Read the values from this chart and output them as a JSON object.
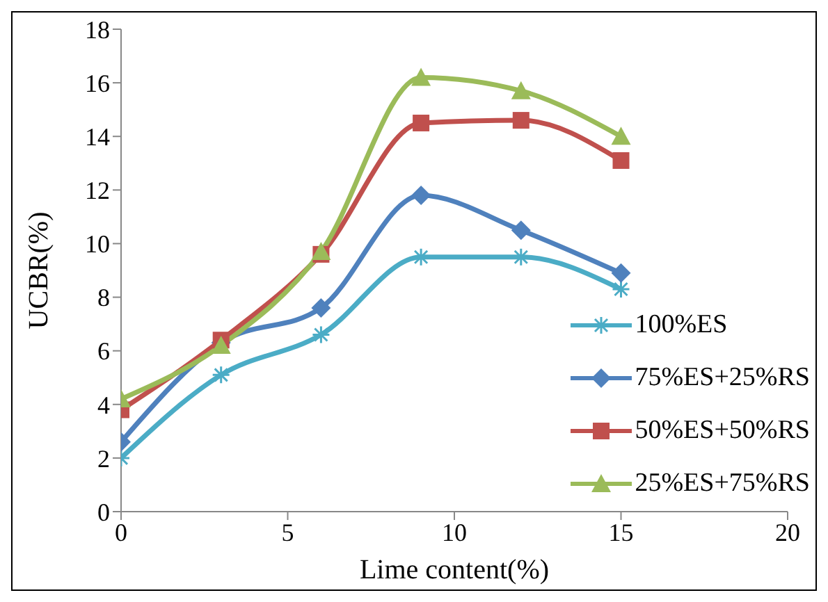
{
  "chart_data": {
    "type": "line",
    "xlabel": "Lime content(%)",
    "ylabel": "UCBR(%)",
    "x": [
      0,
      3,
      6,
      9,
      12,
      15
    ],
    "xlim": [
      0,
      20
    ],
    "xticks": [
      0,
      5,
      10,
      15,
      20
    ],
    "ylim": [
      0,
      18
    ],
    "yticks": [
      0,
      2,
      4,
      6,
      8,
      10,
      12,
      14,
      16,
      18
    ],
    "grid": false,
    "legend": "right",
    "series": [
      {
        "name": "100%ES",
        "color": "#4bacc6",
        "marker": "cross",
        "values": [
          2.0,
          5.1,
          6.6,
          9.5,
          9.5,
          8.3
        ]
      },
      {
        "name": "75%ES+25%RS",
        "color": "#4f81bd",
        "marker": "diamond",
        "values": [
          2.6,
          6.3,
          7.6,
          11.8,
          10.5,
          8.9
        ]
      },
      {
        "name": "50%ES+50%RS",
        "color": "#c0504d",
        "marker": "square",
        "values": [
          3.8,
          6.4,
          9.6,
          14.5,
          14.6,
          13.1
        ]
      },
      {
        "name": "25%ES+75%RS",
        "color": "#9bbb59",
        "marker": "triangle",
        "values": [
          4.2,
          6.2,
          9.7,
          16.2,
          15.7,
          14.0
        ]
      }
    ]
  }
}
